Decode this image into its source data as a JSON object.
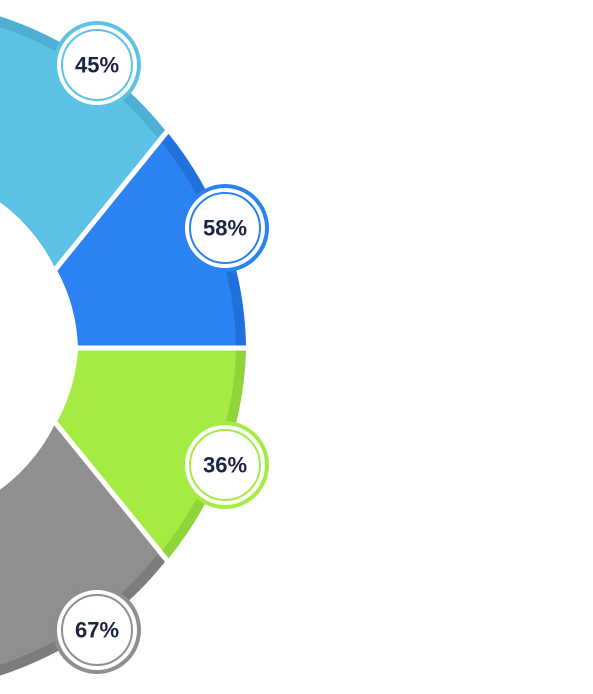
{
  "segments": [
    {
      "label": "45%"
    },
    {
      "label": "58%"
    },
    {
      "label": "36%"
    },
    {
      "label": "67%"
    }
  ]
}
